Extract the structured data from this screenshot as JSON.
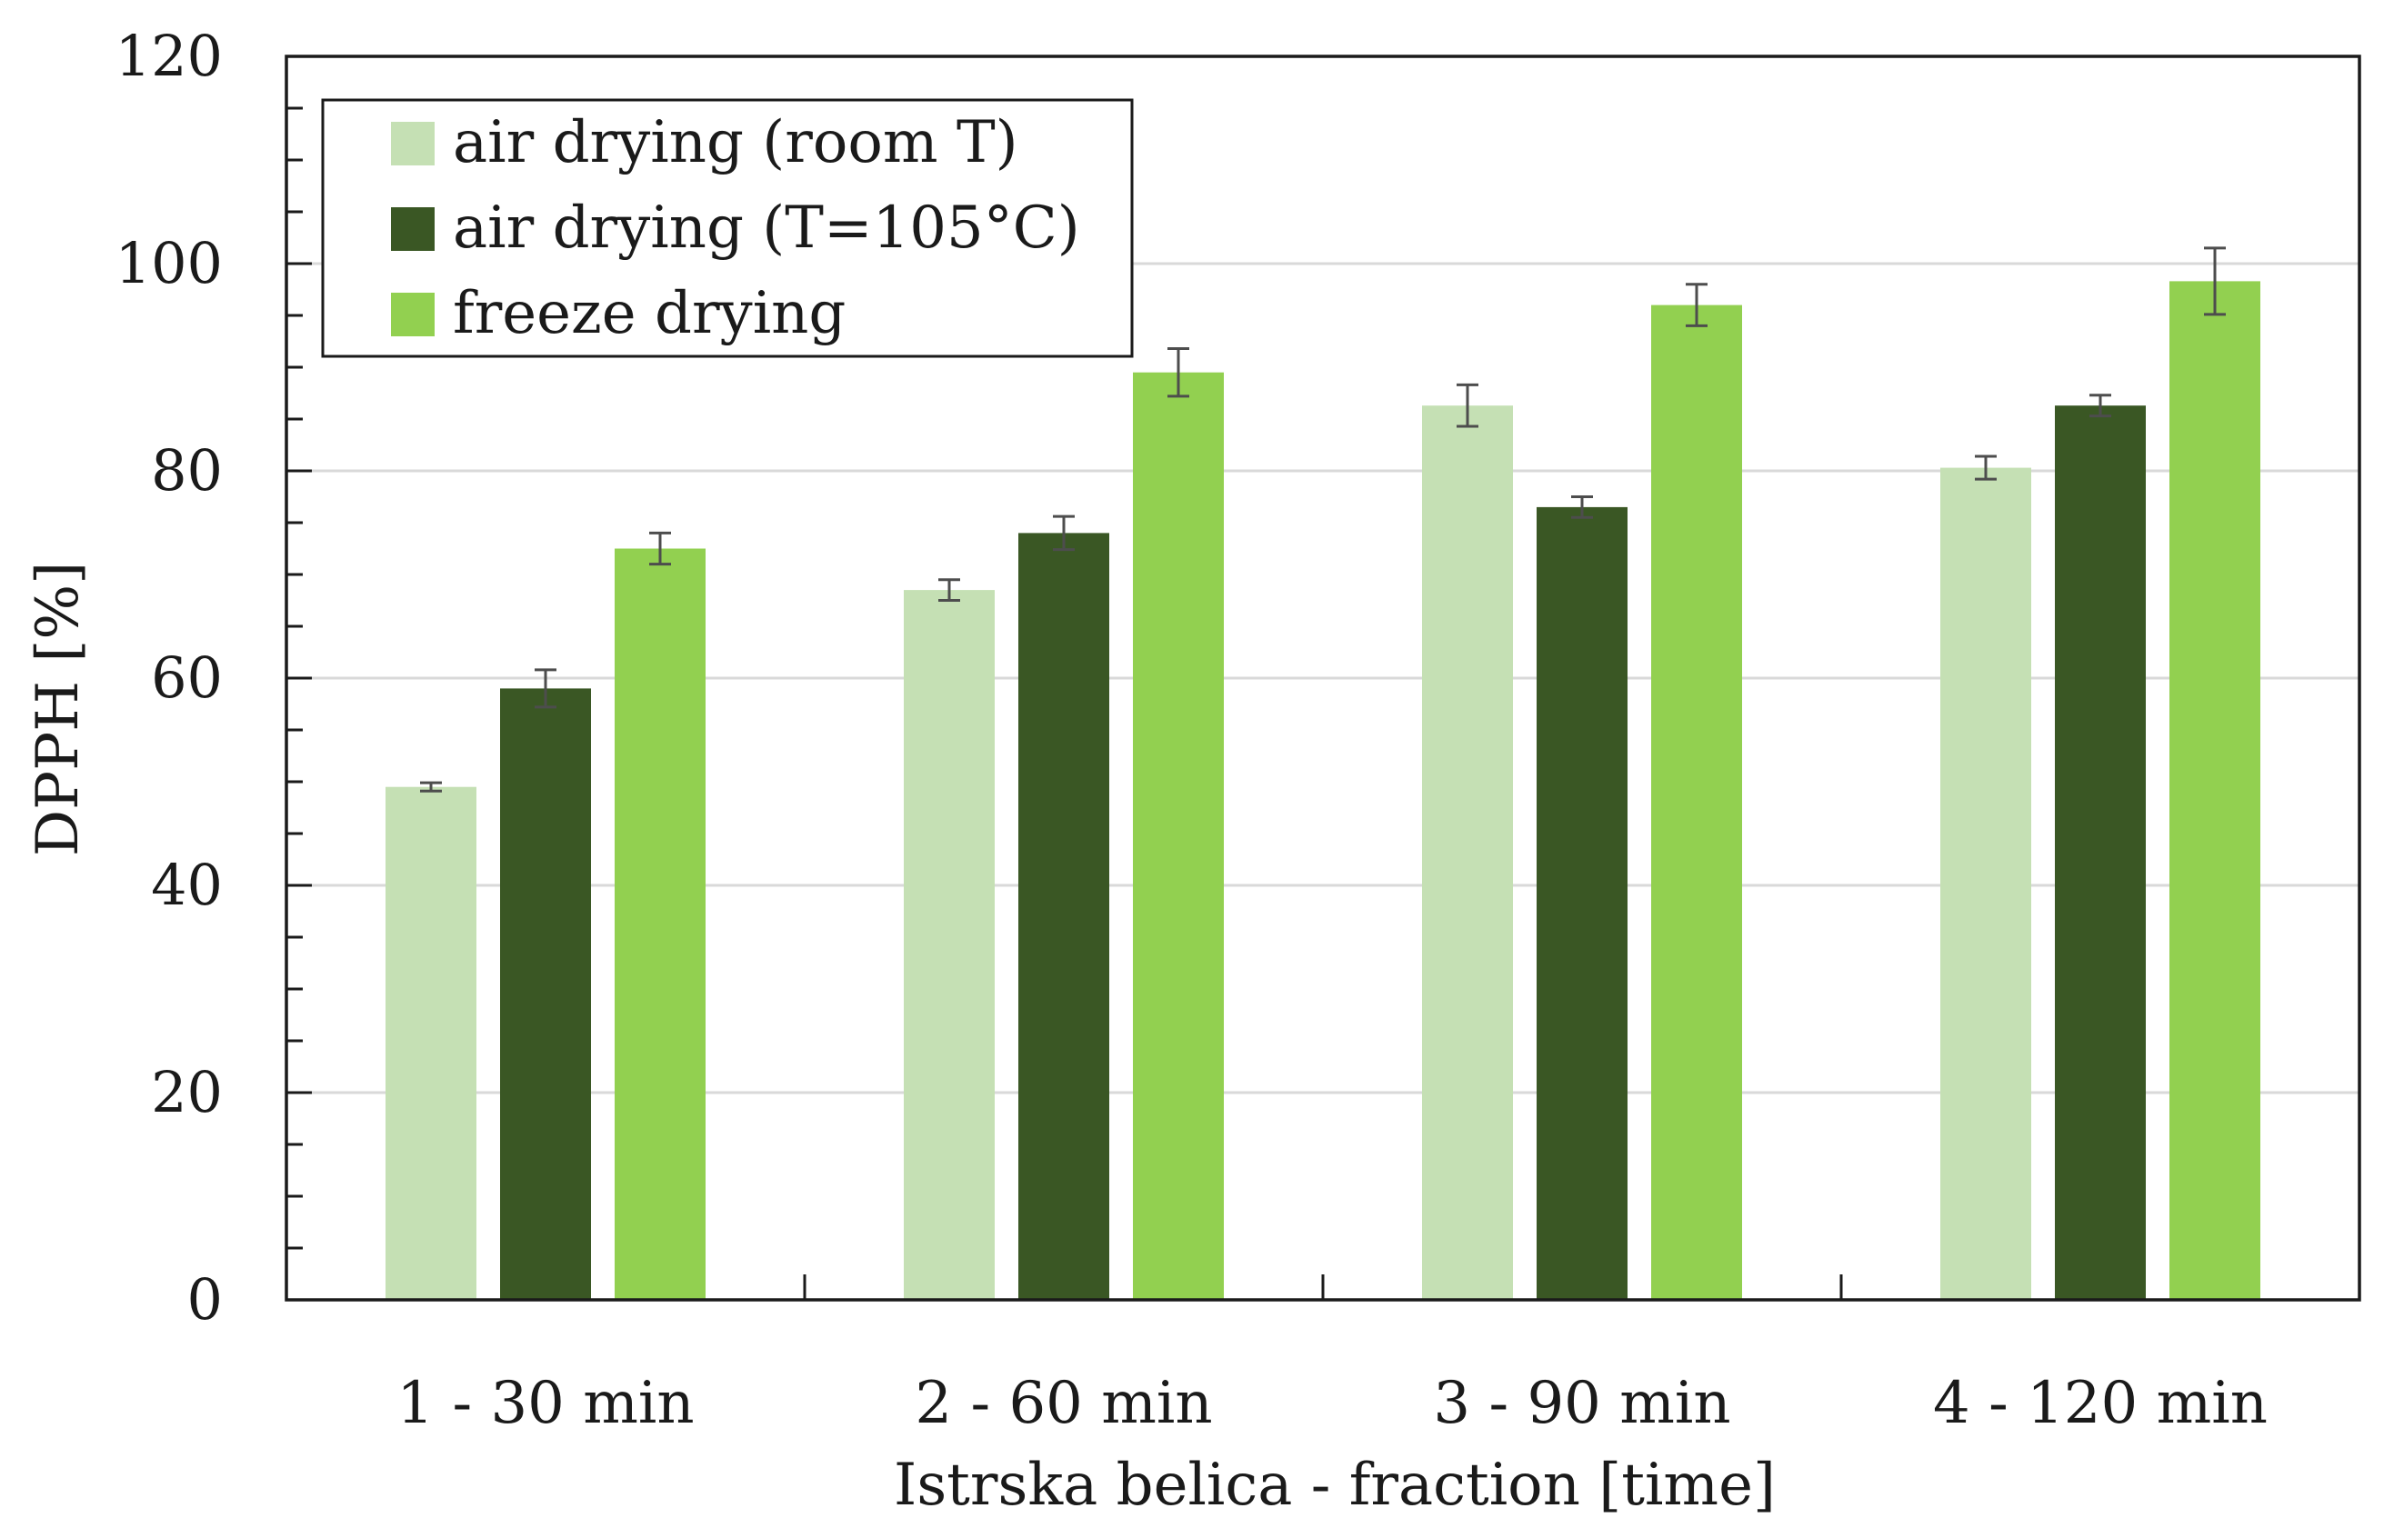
{
  "chart_data": {
    "type": "bar",
    "title": "",
    "xlabel": "Istrska belica - fraction [time]",
    "ylabel": "DPPH [%]",
    "ylim": [
      0,
      120
    ],
    "yticks": [
      0,
      20,
      40,
      60,
      80,
      100,
      120
    ],
    "grid": true,
    "legend_position": "top-left",
    "categories": [
      "1 - 30 min",
      "2 - 60 min",
      "3 - 90 min",
      "4 - 120 min"
    ],
    "series": [
      {
        "name": "air drying (room T)",
        "color": "#c5e0b4",
        "values": [
          49.5,
          68.5,
          86.3,
          80.3
        ],
        "errors": [
          0.4,
          1.0,
          2.0,
          1.1
        ]
      },
      {
        "name": "air drying (T=105°C)",
        "color": "#3a5724",
        "values": [
          59.0,
          74.0,
          76.5,
          86.3
        ],
        "errors": [
          1.8,
          1.6,
          1.0,
          1.0
        ]
      },
      {
        "name": "freeze drying",
        "color": "#92d050",
        "values": [
          72.5,
          89.5,
          96.0,
          98.3
        ],
        "errors": [
          1.5,
          2.3,
          2.0,
          3.2
        ]
      }
    ]
  }
}
